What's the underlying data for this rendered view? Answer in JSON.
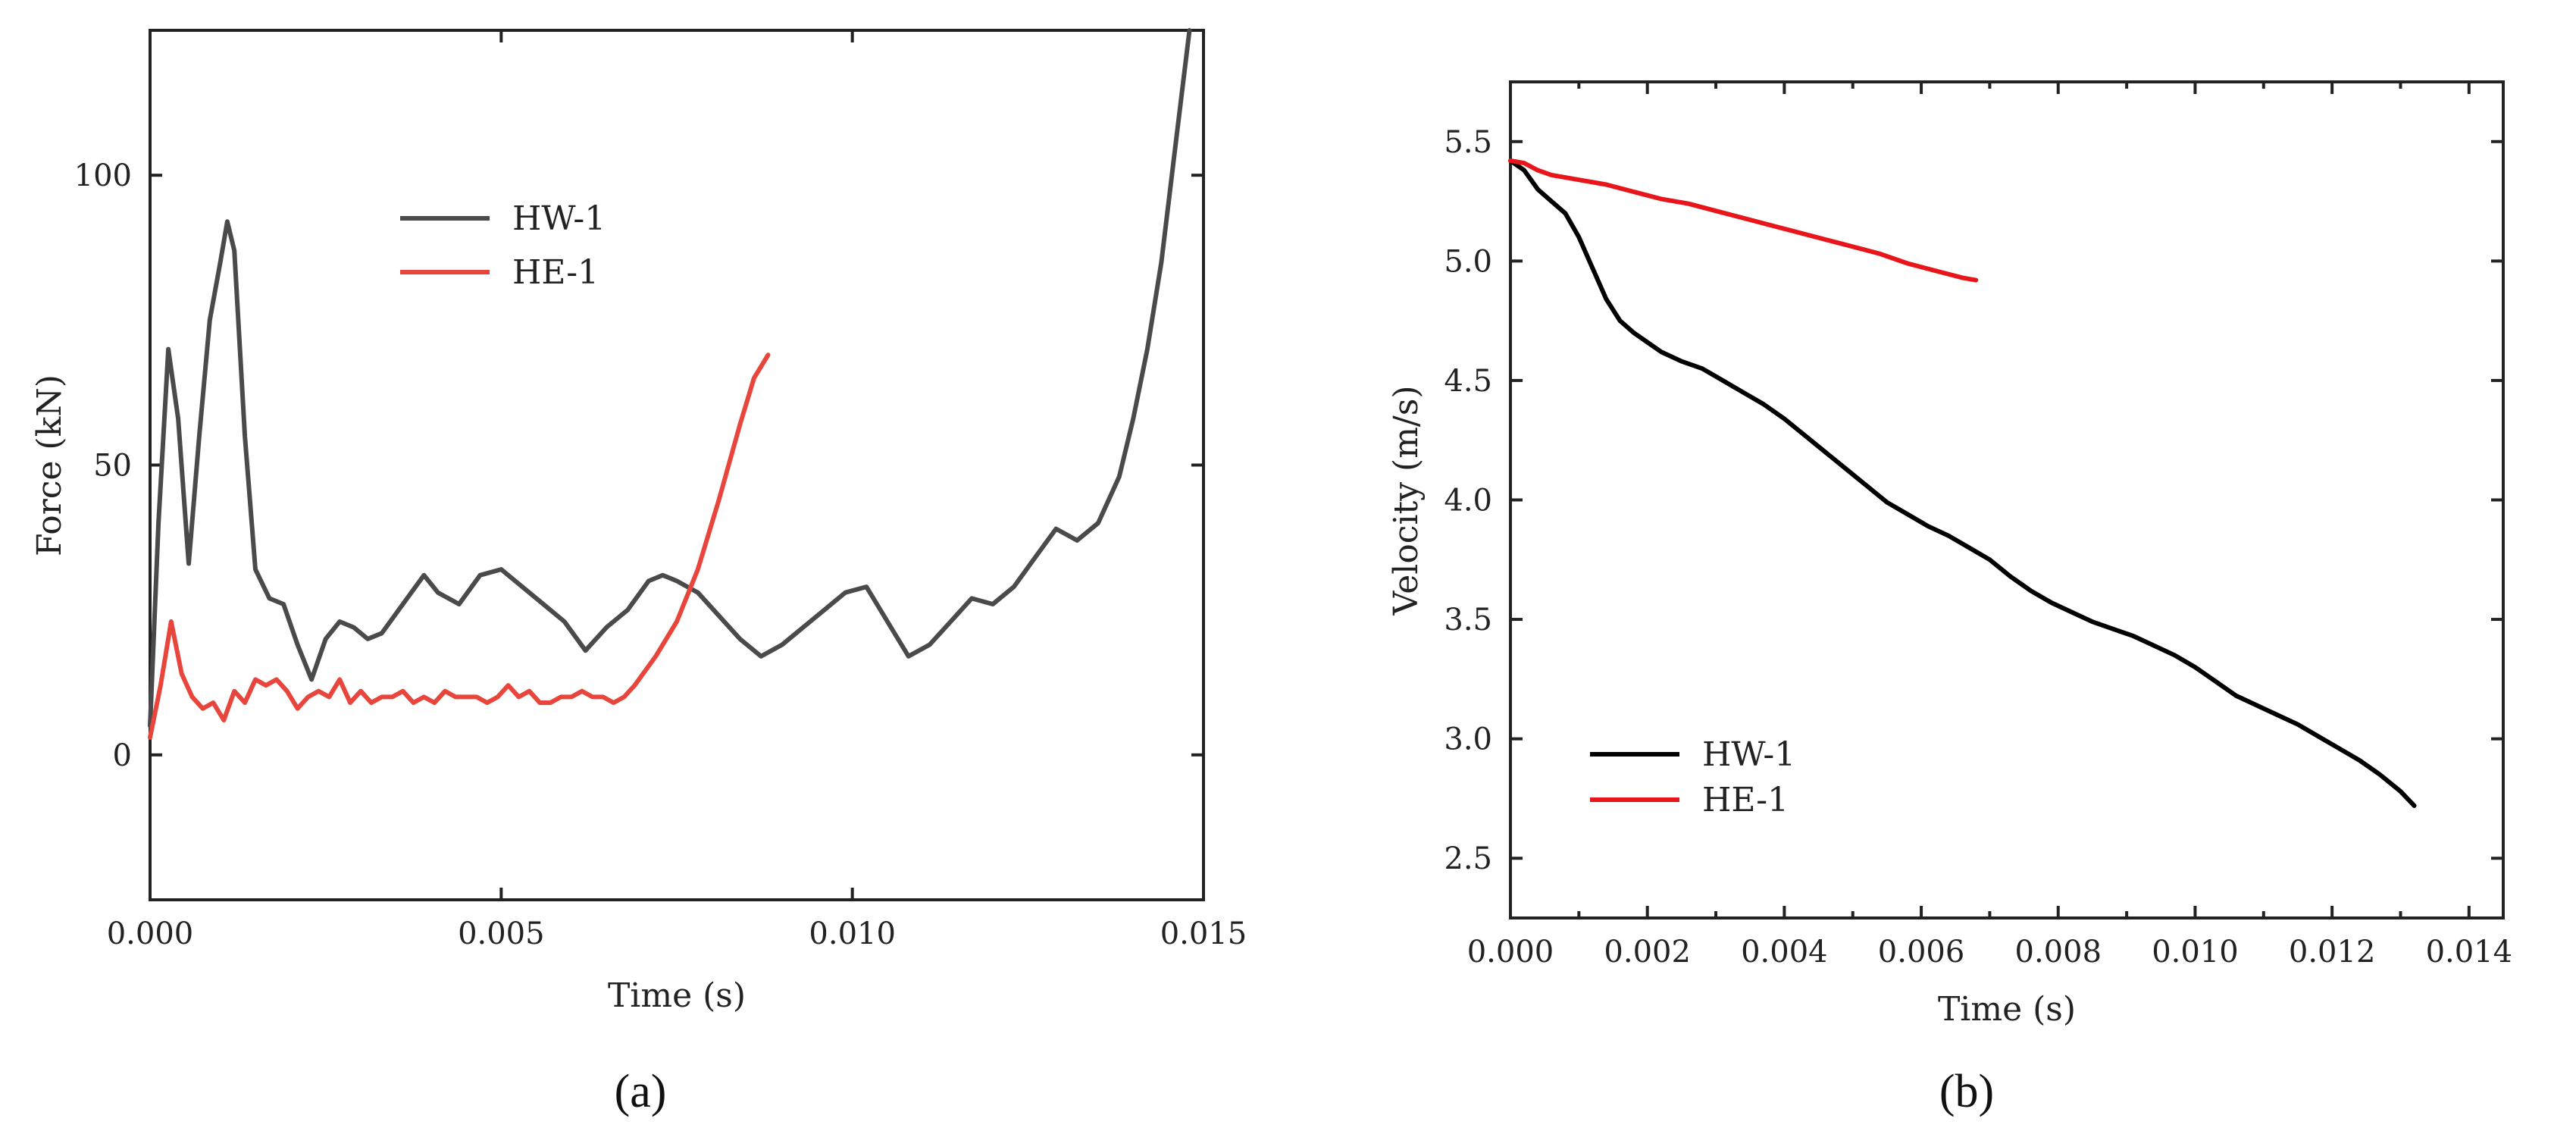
{
  "chart_data": [
    {
      "type": "line",
      "panel_label": "(a)",
      "xlabel": "Time (s)",
      "ylabel": "Force (kN)",
      "xlim": [
        0,
        0.015
      ],
      "ylim": [
        -25,
        125
      ],
      "xticks": [
        0,
        0.005,
        0.01,
        0.015
      ],
      "xtick_labels": [
        "0.000",
        "0.005",
        "0.010",
        "0.015"
      ],
      "yticks": [
        0,
        50,
        100
      ],
      "ytick_labels": [
        "0",
        "50",
        "100"
      ],
      "grid": false,
      "legend": "top-left",
      "series": [
        {
          "name": "HW-1",
          "color": "#4a4a4a",
          "x": [
            0,
            0.00012,
            0.00026,
            0.0004,
            0.00055,
            0.0007,
            0.00085,
            0.001,
            0.0011,
            0.0012,
            0.00135,
            0.0015,
            0.0017,
            0.0019,
            0.0021,
            0.0023,
            0.0025,
            0.0027,
            0.0029,
            0.0031,
            0.0033,
            0.0036,
            0.0039,
            0.0041,
            0.0044,
            0.0047,
            0.005,
            0.0053,
            0.0056,
            0.0059,
            0.0062,
            0.0065,
            0.0068,
            0.0071,
            0.0073,
            0.0075,
            0.0078,
            0.0081,
            0.0084,
            0.0087,
            0.009,
            0.0093,
            0.0096,
            0.0099,
            0.0102,
            0.0105,
            0.0108,
            0.0111,
            0.0114,
            0.0117,
            0.012,
            0.0123,
            0.0126,
            0.0129,
            0.0132,
            0.0135,
            0.0138,
            0.014,
            0.0142,
            0.0144,
            0.0146,
            0.0148
          ],
          "y": [
            5,
            40,
            70,
            58,
            33,
            55,
            75,
            85,
            92,
            87,
            55,
            32,
            27,
            26,
            19,
            13,
            20,
            23,
            22,
            20,
            21,
            26,
            31,
            28,
            26,
            31,
            32,
            29,
            26,
            23,
            18,
            22,
            25,
            30,
            31,
            30,
            28,
            24,
            20,
            17,
            19,
            22,
            25,
            28,
            29,
            23,
            17,
            19,
            23,
            27,
            26,
            29,
            34,
            39,
            37,
            40,
            48,
            58,
            70,
            85,
            105,
            125
          ]
        },
        {
          "name": "HE-1",
          "color": "#e8453c",
          "x": [
            0,
            0.00015,
            0.0003,
            0.00045,
            0.0006,
            0.00075,
            0.0009,
            0.00105,
            0.0012,
            0.00135,
            0.0015,
            0.00165,
            0.0018,
            0.00195,
            0.0021,
            0.00225,
            0.0024,
            0.00255,
            0.0027,
            0.00285,
            0.003,
            0.00315,
            0.0033,
            0.00345,
            0.0036,
            0.00375,
            0.0039,
            0.00405,
            0.0042,
            0.00435,
            0.0045,
            0.00465,
            0.0048,
            0.00495,
            0.0051,
            0.00525,
            0.0054,
            0.00555,
            0.0057,
            0.00585,
            0.006,
            0.00615,
            0.0063,
            0.00645,
            0.0066,
            0.00675,
            0.0069,
            0.0072,
            0.0075,
            0.0078,
            0.0081,
            0.0084,
            0.0086,
            0.0088
          ],
          "y": [
            3,
            12,
            23,
            14,
            10,
            8,
            9,
            6,
            11,
            9,
            13,
            12,
            13,
            11,
            8,
            10,
            11,
            10,
            13,
            9,
            11,
            9,
            10,
            10,
            11,
            9,
            10,
            9,
            11,
            10,
            10,
            10,
            9,
            10,
            12,
            10,
            11,
            9,
            9,
            10,
            10,
            11,
            10,
            10,
            9,
            10,
            12,
            17,
            23,
            32,
            44,
            57,
            65,
            69
          ]
        }
      ]
    },
    {
      "type": "line",
      "panel_label": "(b)",
      "xlabel": "Time (s)",
      "ylabel": "Velocity (m/s)",
      "xlim": [
        0,
        0.0145
      ],
      "ylim": [
        2.25,
        5.75
      ],
      "xticks": [
        0,
        0.002,
        0.004,
        0.006,
        0.008,
        0.01,
        0.012,
        0.014
      ],
      "xtick_labels": [
        "0.000",
        "0.002",
        "0.004",
        "0.006",
        "0.008",
        "0.010",
        "0.012",
        "0.014"
      ],
      "yticks": [
        2.5,
        3.0,
        3.5,
        4.0,
        4.5,
        5.0,
        5.5
      ],
      "ytick_labels": [
        "2.5",
        "3.0",
        "3.5",
        "4.0",
        "4.5",
        "5.0",
        "5.5"
      ],
      "grid": false,
      "legend": "bottom-left",
      "series": [
        {
          "name": "HW-1",
          "color": "#000000",
          "x": [
            0,
            0.0002,
            0.0004,
            0.0006,
            0.0008,
            0.001,
            0.0012,
            0.0014,
            0.0016,
            0.0018,
            0.002,
            0.0022,
            0.0025,
            0.0028,
            0.0031,
            0.0034,
            0.0037,
            0.004,
            0.0043,
            0.0046,
            0.0049,
            0.0052,
            0.0055,
            0.0058,
            0.0061,
            0.0064,
            0.0067,
            0.007,
            0.0073,
            0.0076,
            0.0079,
            0.0082,
            0.0085,
            0.0088,
            0.0091,
            0.0094,
            0.0097,
            0.01,
            0.0103,
            0.0106,
            0.0109,
            0.0112,
            0.0115,
            0.0118,
            0.0121,
            0.0124,
            0.0127,
            0.013,
            0.0132
          ],
          "y": [
            5.42,
            5.38,
            5.3,
            5.25,
            5.2,
            5.1,
            4.97,
            4.84,
            4.75,
            4.7,
            4.66,
            4.62,
            4.58,
            4.55,
            4.5,
            4.45,
            4.4,
            4.34,
            4.27,
            4.2,
            4.13,
            4.06,
            3.99,
            3.94,
            3.89,
            3.85,
            3.8,
            3.75,
            3.68,
            3.62,
            3.57,
            3.53,
            3.49,
            3.46,
            3.43,
            3.39,
            3.35,
            3.3,
            3.24,
            3.18,
            3.14,
            3.1,
            3.06,
            3.01,
            2.96,
            2.91,
            2.85,
            2.78,
            2.72
          ]
        },
        {
          "name": "HE-1",
          "color": "#e8151b",
          "x": [
            0,
            0.0002,
            0.0004,
            0.0006,
            0.0008,
            0.001,
            0.0014,
            0.0018,
            0.0022,
            0.0026,
            0.003,
            0.0034,
            0.0038,
            0.0042,
            0.0046,
            0.005,
            0.0054,
            0.0058,
            0.0062,
            0.0066,
            0.0068
          ],
          "y": [
            5.42,
            5.41,
            5.38,
            5.36,
            5.35,
            5.34,
            5.32,
            5.29,
            5.26,
            5.24,
            5.21,
            5.18,
            5.15,
            5.12,
            5.09,
            5.06,
            5.03,
            4.99,
            4.96,
            4.93,
            4.92
          ]
        }
      ]
    }
  ]
}
